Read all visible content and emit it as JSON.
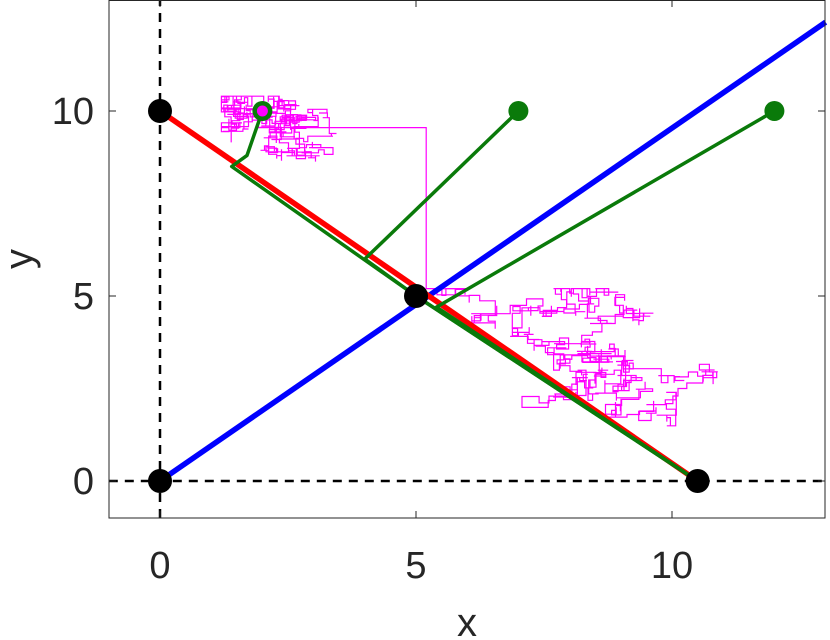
{
  "chart_data": {
    "type": "line",
    "title": "",
    "xlabel": "x",
    "ylabel": "y",
    "xlim": [
      -1,
      13
    ],
    "ylim": [
      -1,
      13
    ],
    "xticks": [
      0,
      5,
      10
    ],
    "yticks": [
      0,
      5,
      10
    ],
    "xtick_labels": [
      "0",
      "5",
      "10"
    ],
    "ytick_labels": [
      "0",
      "5",
      "10"
    ],
    "grid": false,
    "colors": {
      "blue": "#0000ff",
      "red": "#ff0000",
      "green": "#0a7a0a",
      "magenta": "#ff00ff",
      "black": "#000000"
    },
    "series": [
      {
        "kind": "axis-reference",
        "style": "dashed",
        "x": [
          -1,
          13
        ],
        "y": [
          0,
          0
        ]
      },
      {
        "kind": "axis-reference",
        "style": "dashed",
        "x": [
          0,
          0
        ],
        "y": [
          -1,
          13
        ]
      },
      {
        "kind": "line",
        "color": "blue",
        "x": [
          0,
          13
        ],
        "y": [
          0,
          12.4
        ]
      },
      {
        "kind": "line",
        "color": "red",
        "x": [
          0,
          10.5
        ],
        "y": [
          10,
          0
        ]
      },
      {
        "kind": "path",
        "color": "green",
        "x": [
          2,
          1.7,
          1.4,
          5.0,
          10.5
        ],
        "y": [
          10,
          8.8,
          8.5,
          5.0,
          0
        ]
      },
      {
        "kind": "path",
        "color": "green",
        "x": [
          7,
          4.0,
          5.0,
          10.5
        ],
        "y": [
          10,
          6.0,
          5.0,
          0
        ]
      },
      {
        "kind": "path",
        "color": "green",
        "x": [
          12,
          5.4,
          10.5
        ],
        "y": [
          10,
          4.7,
          0
        ]
      },
      {
        "kind": "random-walk",
        "color": "magenta",
        "start": [
          2,
          10
        ]
      }
    ],
    "markers": {
      "black": [
        [
          0,
          10
        ],
        [
          0,
          0
        ],
        [
          5,
          5
        ],
        [
          10.5,
          0
        ]
      ],
      "green": [
        [
          2,
          10
        ],
        [
          7,
          10
        ],
        [
          12,
          10
        ]
      ],
      "magenta": [
        [
          2,
          10
        ]
      ]
    }
  }
}
